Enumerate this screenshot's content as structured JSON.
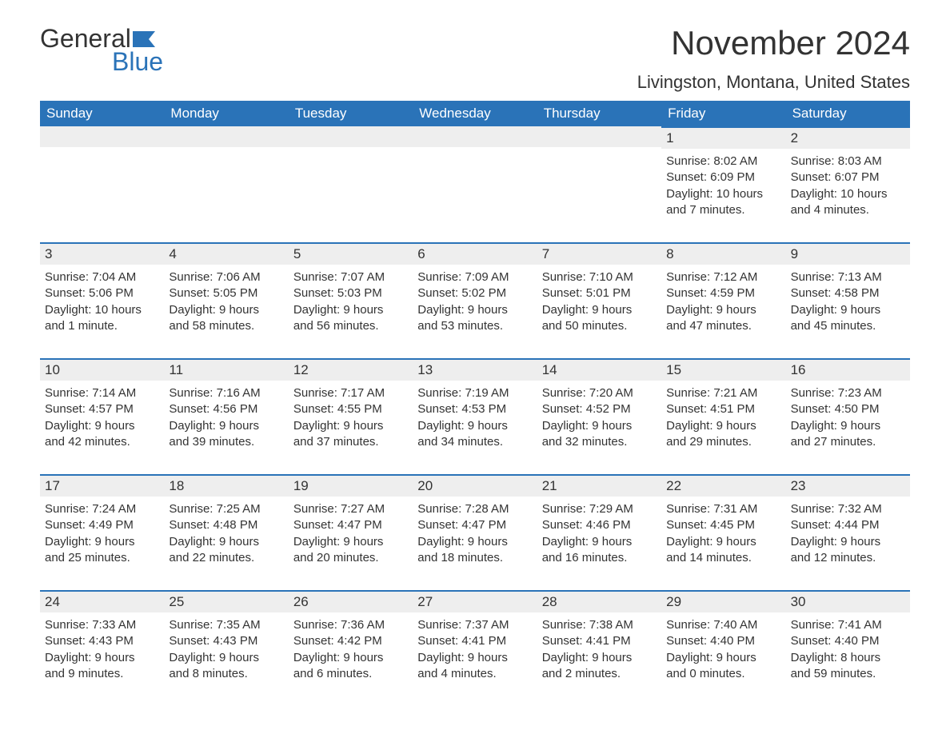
{
  "logo": {
    "word1": "General",
    "word2": "Blue",
    "text_color": "#333333",
    "accent_color": "#2a73b8"
  },
  "title": "November 2024",
  "location": "Livingston, Montana, United States",
  "header_bg": "#2a73b8",
  "header_text_color": "#ffffff",
  "date_bar_bg": "#eeeeee",
  "date_bar_border": "#2a73b8",
  "day_headers": [
    "Sunday",
    "Monday",
    "Tuesday",
    "Wednesday",
    "Thursday",
    "Friday",
    "Saturday"
  ],
  "weeks": [
    [
      null,
      null,
      null,
      null,
      null,
      {
        "date": "1",
        "sunrise": "Sunrise: 8:02 AM",
        "sunset": "Sunset: 6:09 PM",
        "daylight1": "Daylight: 10 hours",
        "daylight2": "and 7 minutes."
      },
      {
        "date": "2",
        "sunrise": "Sunrise: 8:03 AM",
        "sunset": "Sunset: 6:07 PM",
        "daylight1": "Daylight: 10 hours",
        "daylight2": "and 4 minutes."
      }
    ],
    [
      {
        "date": "3",
        "sunrise": "Sunrise: 7:04 AM",
        "sunset": "Sunset: 5:06 PM",
        "daylight1": "Daylight: 10 hours",
        "daylight2": "and 1 minute."
      },
      {
        "date": "4",
        "sunrise": "Sunrise: 7:06 AM",
        "sunset": "Sunset: 5:05 PM",
        "daylight1": "Daylight: 9 hours",
        "daylight2": "and 58 minutes."
      },
      {
        "date": "5",
        "sunrise": "Sunrise: 7:07 AM",
        "sunset": "Sunset: 5:03 PM",
        "daylight1": "Daylight: 9 hours",
        "daylight2": "and 56 minutes."
      },
      {
        "date": "6",
        "sunrise": "Sunrise: 7:09 AM",
        "sunset": "Sunset: 5:02 PM",
        "daylight1": "Daylight: 9 hours",
        "daylight2": "and 53 minutes."
      },
      {
        "date": "7",
        "sunrise": "Sunrise: 7:10 AM",
        "sunset": "Sunset: 5:01 PM",
        "daylight1": "Daylight: 9 hours",
        "daylight2": "and 50 minutes."
      },
      {
        "date": "8",
        "sunrise": "Sunrise: 7:12 AM",
        "sunset": "Sunset: 4:59 PM",
        "daylight1": "Daylight: 9 hours",
        "daylight2": "and 47 minutes."
      },
      {
        "date": "9",
        "sunrise": "Sunrise: 7:13 AM",
        "sunset": "Sunset: 4:58 PM",
        "daylight1": "Daylight: 9 hours",
        "daylight2": "and 45 minutes."
      }
    ],
    [
      {
        "date": "10",
        "sunrise": "Sunrise: 7:14 AM",
        "sunset": "Sunset: 4:57 PM",
        "daylight1": "Daylight: 9 hours",
        "daylight2": "and 42 minutes."
      },
      {
        "date": "11",
        "sunrise": "Sunrise: 7:16 AM",
        "sunset": "Sunset: 4:56 PM",
        "daylight1": "Daylight: 9 hours",
        "daylight2": "and 39 minutes."
      },
      {
        "date": "12",
        "sunrise": "Sunrise: 7:17 AM",
        "sunset": "Sunset: 4:55 PM",
        "daylight1": "Daylight: 9 hours",
        "daylight2": "and 37 minutes."
      },
      {
        "date": "13",
        "sunrise": "Sunrise: 7:19 AM",
        "sunset": "Sunset: 4:53 PM",
        "daylight1": "Daylight: 9 hours",
        "daylight2": "and 34 minutes."
      },
      {
        "date": "14",
        "sunrise": "Sunrise: 7:20 AM",
        "sunset": "Sunset: 4:52 PM",
        "daylight1": "Daylight: 9 hours",
        "daylight2": "and 32 minutes."
      },
      {
        "date": "15",
        "sunrise": "Sunrise: 7:21 AM",
        "sunset": "Sunset: 4:51 PM",
        "daylight1": "Daylight: 9 hours",
        "daylight2": "and 29 minutes."
      },
      {
        "date": "16",
        "sunrise": "Sunrise: 7:23 AM",
        "sunset": "Sunset: 4:50 PM",
        "daylight1": "Daylight: 9 hours",
        "daylight2": "and 27 minutes."
      }
    ],
    [
      {
        "date": "17",
        "sunrise": "Sunrise: 7:24 AM",
        "sunset": "Sunset: 4:49 PM",
        "daylight1": "Daylight: 9 hours",
        "daylight2": "and 25 minutes."
      },
      {
        "date": "18",
        "sunrise": "Sunrise: 7:25 AM",
        "sunset": "Sunset: 4:48 PM",
        "daylight1": "Daylight: 9 hours",
        "daylight2": "and 22 minutes."
      },
      {
        "date": "19",
        "sunrise": "Sunrise: 7:27 AM",
        "sunset": "Sunset: 4:47 PM",
        "daylight1": "Daylight: 9 hours",
        "daylight2": "and 20 minutes."
      },
      {
        "date": "20",
        "sunrise": "Sunrise: 7:28 AM",
        "sunset": "Sunset: 4:47 PM",
        "daylight1": "Daylight: 9 hours",
        "daylight2": "and 18 minutes."
      },
      {
        "date": "21",
        "sunrise": "Sunrise: 7:29 AM",
        "sunset": "Sunset: 4:46 PM",
        "daylight1": "Daylight: 9 hours",
        "daylight2": "and 16 minutes."
      },
      {
        "date": "22",
        "sunrise": "Sunrise: 7:31 AM",
        "sunset": "Sunset: 4:45 PM",
        "daylight1": "Daylight: 9 hours",
        "daylight2": "and 14 minutes."
      },
      {
        "date": "23",
        "sunrise": "Sunrise: 7:32 AM",
        "sunset": "Sunset: 4:44 PM",
        "daylight1": "Daylight: 9 hours",
        "daylight2": "and 12 minutes."
      }
    ],
    [
      {
        "date": "24",
        "sunrise": "Sunrise: 7:33 AM",
        "sunset": "Sunset: 4:43 PM",
        "daylight1": "Daylight: 9 hours",
        "daylight2": "and 9 minutes."
      },
      {
        "date": "25",
        "sunrise": "Sunrise: 7:35 AM",
        "sunset": "Sunset: 4:43 PM",
        "daylight1": "Daylight: 9 hours",
        "daylight2": "and 8 minutes."
      },
      {
        "date": "26",
        "sunrise": "Sunrise: 7:36 AM",
        "sunset": "Sunset: 4:42 PM",
        "daylight1": "Daylight: 9 hours",
        "daylight2": "and 6 minutes."
      },
      {
        "date": "27",
        "sunrise": "Sunrise: 7:37 AM",
        "sunset": "Sunset: 4:41 PM",
        "daylight1": "Daylight: 9 hours",
        "daylight2": "and 4 minutes."
      },
      {
        "date": "28",
        "sunrise": "Sunrise: 7:38 AM",
        "sunset": "Sunset: 4:41 PM",
        "daylight1": "Daylight: 9 hours",
        "daylight2": "and 2 minutes."
      },
      {
        "date": "29",
        "sunrise": "Sunrise: 7:40 AM",
        "sunset": "Sunset: 4:40 PM",
        "daylight1": "Daylight: 9 hours",
        "daylight2": "and 0 minutes."
      },
      {
        "date": "30",
        "sunrise": "Sunrise: 7:41 AM",
        "sunset": "Sunset: 4:40 PM",
        "daylight1": "Daylight: 8 hours",
        "daylight2": "and 59 minutes."
      }
    ]
  ]
}
